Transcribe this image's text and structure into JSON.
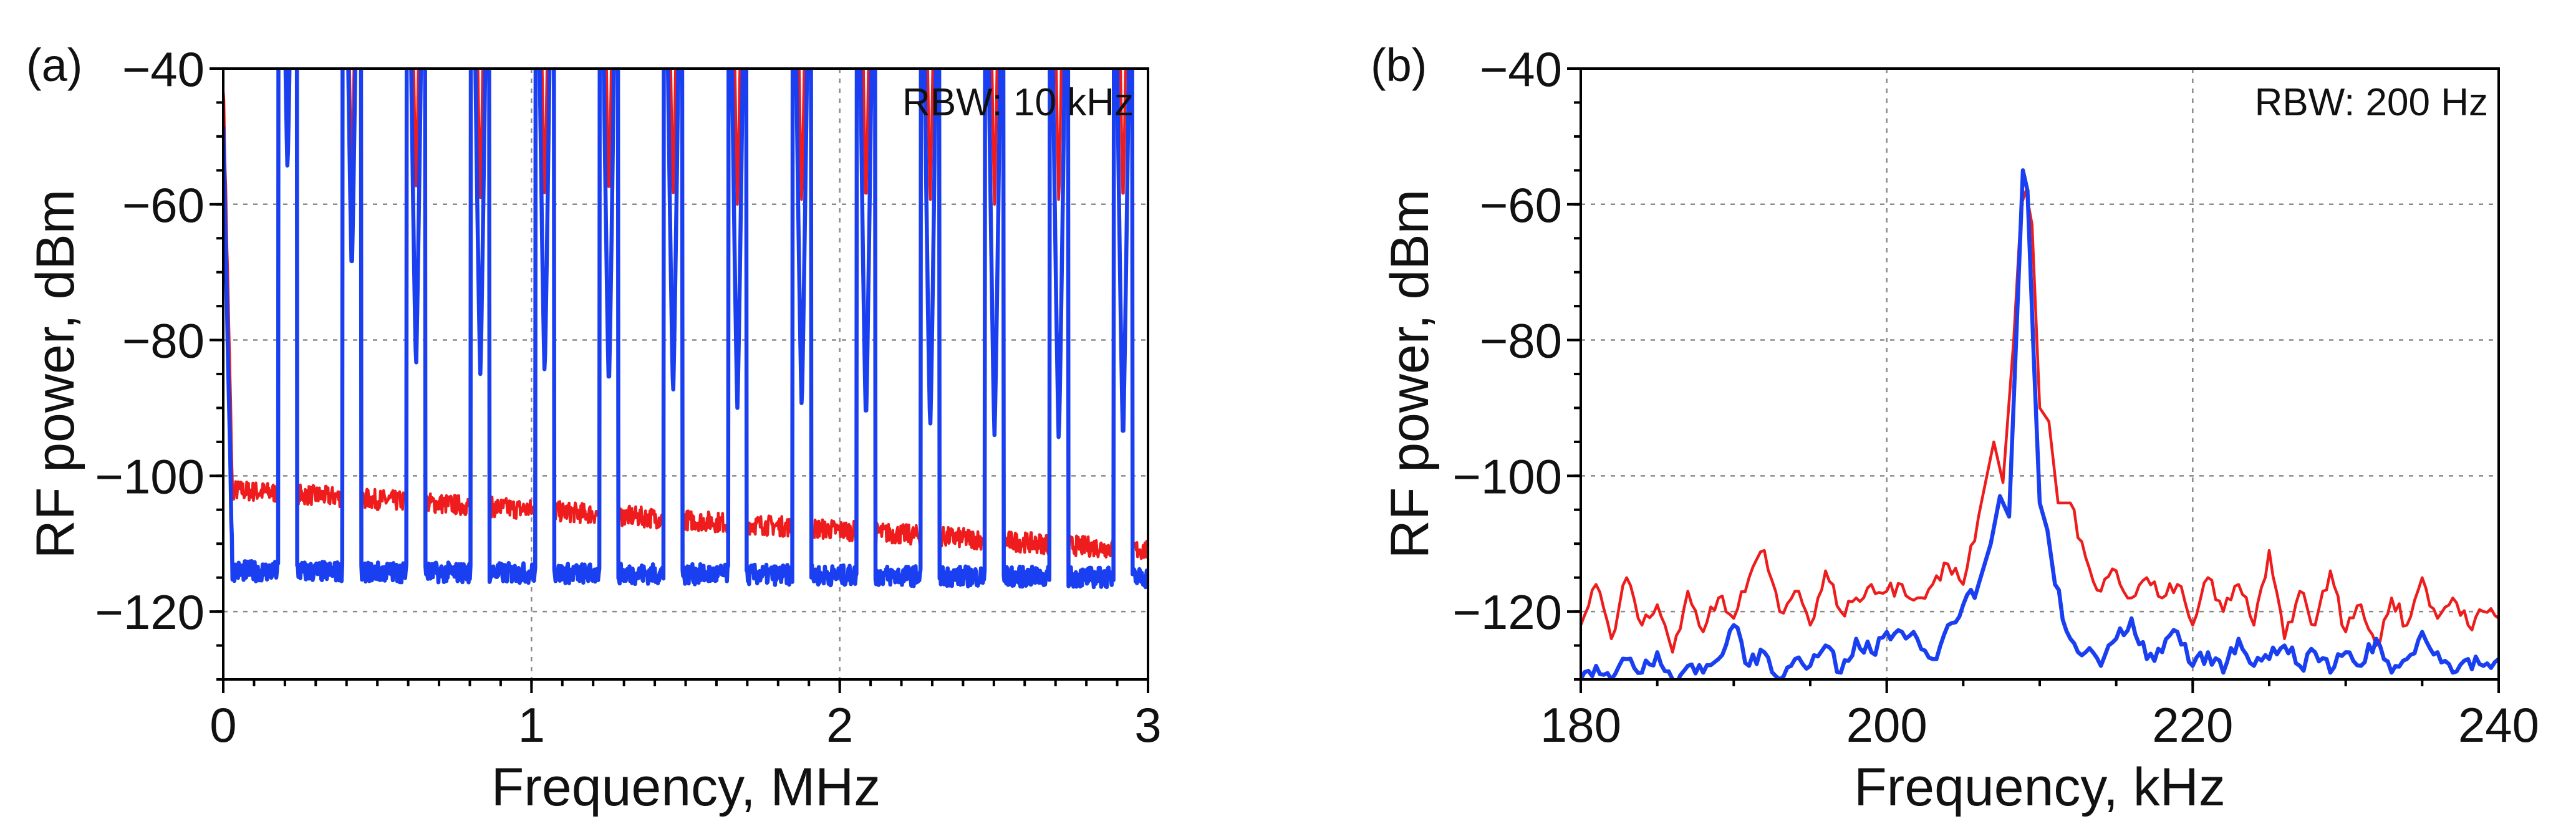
{
  "chart_data": [
    {
      "id": "a",
      "type": "line",
      "panel_label": "(a)",
      "xlabel": "Frequency, MHz",
      "ylabel": "RF power, dBm",
      "xlim": [
        0,
        3
      ],
      "ylim": [
        -130,
        -40
      ],
      "xticks": [
        0,
        1,
        2,
        3
      ],
      "xtick_labels": [
        "0",
        "1",
        "2",
        "3"
      ],
      "yticks": [
        -40,
        -60,
        -80,
        -100,
        -120
      ],
      "ytick_labels": [
        "−40",
        "−60",
        "−80",
        "−100",
        "−120"
      ],
      "grid": true,
      "annotation": "RBW: 10 kHz",
      "peak_spacing": 0.2085,
      "series": [
        {
          "name": "red trace",
          "color": "#ee1c1c",
          "noise_floor_start": -102,
          "noise_floor_end": -111,
          "dc_level": -42,
          "peaks": [
            {
              "x": 0.2085,
              "y": -55
            },
            {
              "x": 0.417,
              "y": -57
            },
            {
              "x": 0.6255,
              "y": -58
            },
            {
              "x": 0.834,
              "y": -59
            },
            {
              "x": 1.0425,
              "y": -59
            },
            {
              "x": 1.251,
              "y": -59
            },
            {
              "x": 1.4595,
              "y": -59
            },
            {
              "x": 1.668,
              "y": -60
            },
            {
              "x": 1.8765,
              "y": -60
            },
            {
              "x": 2.085,
              "y": -60
            },
            {
              "x": 2.2935,
              "y": -60
            },
            {
              "x": 2.502,
              "y": -60
            },
            {
              "x": 2.7105,
              "y": -60
            },
            {
              "x": 2.919,
              "y": -60
            }
          ]
        },
        {
          "name": "blue trace",
          "color": "#1a3ff0",
          "noise_floor_start": -114,
          "noise_floor_end": -115,
          "dc_level": -48,
          "peaks": [
            {
              "x": 0.2085,
              "y": -55
            },
            {
              "x": 0.417,
              "y": -70
            },
            {
              "x": 0.6255,
              "y": -84
            },
            {
              "x": 0.834,
              "y": -85
            },
            {
              "x": 1.0425,
              "y": -85
            },
            {
              "x": 1.251,
              "y": -87
            },
            {
              "x": 1.4595,
              "y": -88
            },
            {
              "x": 1.668,
              "y": -90
            },
            {
              "x": 1.8765,
              "y": -90
            },
            {
              "x": 2.085,
              "y": -92
            },
            {
              "x": 2.2935,
              "y": -93
            },
            {
              "x": 2.502,
              "y": -94
            },
            {
              "x": 2.7105,
              "y": -95
            },
            {
              "x": 2.919,
              "y": -95
            }
          ]
        }
      ]
    },
    {
      "id": "b",
      "type": "line",
      "panel_label": "(b)",
      "xlabel": "Frequency, kHz",
      "ylabel": "RF power, dBm",
      "xlim": [
        180,
        240
      ],
      "ylim": [
        -130,
        -40
      ],
      "xticks": [
        180,
        200,
        220,
        240
      ],
      "xtick_labels": [
        "180",
        "200",
        "220",
        "240"
      ],
      "yticks": [
        -40,
        -60,
        -80,
        -100,
        -120
      ],
      "ytick_labels": [
        "−40",
        "−60",
        "−80",
        "−100",
        "−120"
      ],
      "grid": true,
      "annotation": "RBW: 200 Hz",
      "series": [
        {
          "name": "red trace",
          "color": "#ee1c1c",
          "points": [
            [
              180,
              -122
            ],
            [
              181,
              -116
            ],
            [
              182,
              -124
            ],
            [
              183,
              -115
            ],
            [
              184,
              -122
            ],
            [
              185,
              -119
            ],
            [
              186,
              -126
            ],
            [
              187,
              -117
            ],
            [
              188,
              -123
            ],
            [
              189,
              -118
            ],
            [
              190,
              -121
            ],
            [
              191,
              -115
            ],
            [
              192,
              -111
            ],
            [
              193,
              -120
            ],
            [
              194,
              -117
            ],
            [
              195,
              -122
            ],
            [
              196,
              -114
            ],
            [
              197,
              -120
            ],
            [
              198,
              -118
            ],
            [
              199,
              -116
            ],
            [
              200,
              -117
            ],
            [
              201,
              -116
            ],
            [
              202,
              -118
            ],
            [
              203,
              -116
            ],
            [
              204,
              -113
            ],
            [
              205,
              -116
            ],
            [
              206,
              -106
            ],
            [
              207,
              -95
            ],
            [
              207.6,
              -101
            ],
            [
              208.3,
              -80
            ],
            [
              208.8,
              -60
            ],
            [
              209.1,
              -58
            ],
            [
              209.5,
              -63
            ],
            [
              210.0,
              -90
            ],
            [
              210.6,
              -92
            ],
            [
              211.2,
              -104
            ],
            [
              212,
              -104
            ],
            [
              213,
              -112
            ],
            [
              214,
              -117
            ],
            [
              215,
              -114
            ],
            [
              216,
              -118
            ],
            [
              217,
              -115
            ],
            [
              218,
              -118
            ],
            [
              219,
              -116
            ],
            [
              220,
              -122
            ],
            [
              221,
              -115
            ],
            [
              222,
              -120
            ],
            [
              223,
              -116
            ],
            [
              224,
              -122
            ],
            [
              225,
              -111
            ],
            [
              226,
              -124
            ],
            [
              227,
              -117
            ],
            [
              228,
              -122
            ],
            [
              229,
              -114
            ],
            [
              230,
              -123
            ],
            [
              231,
              -119
            ],
            [
              232,
              -125
            ],
            [
              233,
              -118
            ],
            [
              234,
              -122
            ],
            [
              235,
              -115
            ],
            [
              236,
              -121
            ],
            [
              237,
              -118
            ],
            [
              238,
              -122
            ],
            [
              239,
              -120
            ],
            [
              240,
              -121
            ]
          ]
        },
        {
          "name": "blue trace",
          "color": "#1a3ff0",
          "points": [
            [
              180,
              -130
            ],
            [
              181,
              -128
            ],
            [
              182,
              -130
            ],
            [
              183,
              -127
            ],
            [
              184,
              -129
            ],
            [
              185,
              -126
            ],
            [
              186,
              -130
            ],
            [
              187,
              -128
            ],
            [
              188,
              -129
            ],
            [
              189,
              -127
            ],
            [
              190,
              -122
            ],
            [
              191,
              -128
            ],
            [
              192,
              -126
            ],
            [
              193,
              -130
            ],
            [
              194,
              -127
            ],
            [
              195,
              -128
            ],
            [
              196,
              -125
            ],
            [
              197,
              -129
            ],
            [
              198,
              -124
            ],
            [
              199,
              -126
            ],
            [
              200,
              -123
            ],
            [
              201,
              -123
            ],
            [
              202,
              -124
            ],
            [
              203,
              -127
            ],
            [
              204,
              -122
            ],
            [
              205,
              -119
            ],
            [
              206,
              -116
            ],
            [
              206.8,
              -110
            ],
            [
              207.4,
              -103
            ],
            [
              208,
              -106
            ],
            [
              208.6,
              -72
            ],
            [
              208.9,
              -55
            ],
            [
              209.2,
              -58
            ],
            [
              209.6,
              -82
            ],
            [
              210.0,
              -104
            ],
            [
              210.5,
              -108
            ],
            [
              211,
              -116
            ],
            [
              212,
              -124
            ],
            [
              213,
              -126
            ],
            [
              214,
              -128
            ],
            [
              215,
              -124
            ],
            [
              216,
              -121
            ],
            [
              217,
              -127
            ],
            [
              218,
              -126
            ],
            [
              219,
              -123
            ],
            [
              220,
              -128
            ],
            [
              221,
              -126
            ],
            [
              222,
              -129
            ],
            [
              223,
              -124
            ],
            [
              224,
              -128
            ],
            [
              225,
              -127
            ],
            [
              226,
              -125
            ],
            [
              227,
              -128
            ],
            [
              228,
              -126
            ],
            [
              229,
              -129
            ],
            [
              230,
              -126
            ],
            [
              231,
              -128
            ],
            [
              232,
              -124
            ],
            [
              233,
              -129
            ],
            [
              234,
              -127
            ],
            [
              235,
              -123
            ],
            [
              236,
              -126
            ],
            [
              237,
              -129
            ],
            [
              238,
              -127
            ],
            [
              239,
              -128
            ],
            [
              240,
              -127
            ]
          ]
        }
      ]
    }
  ]
}
